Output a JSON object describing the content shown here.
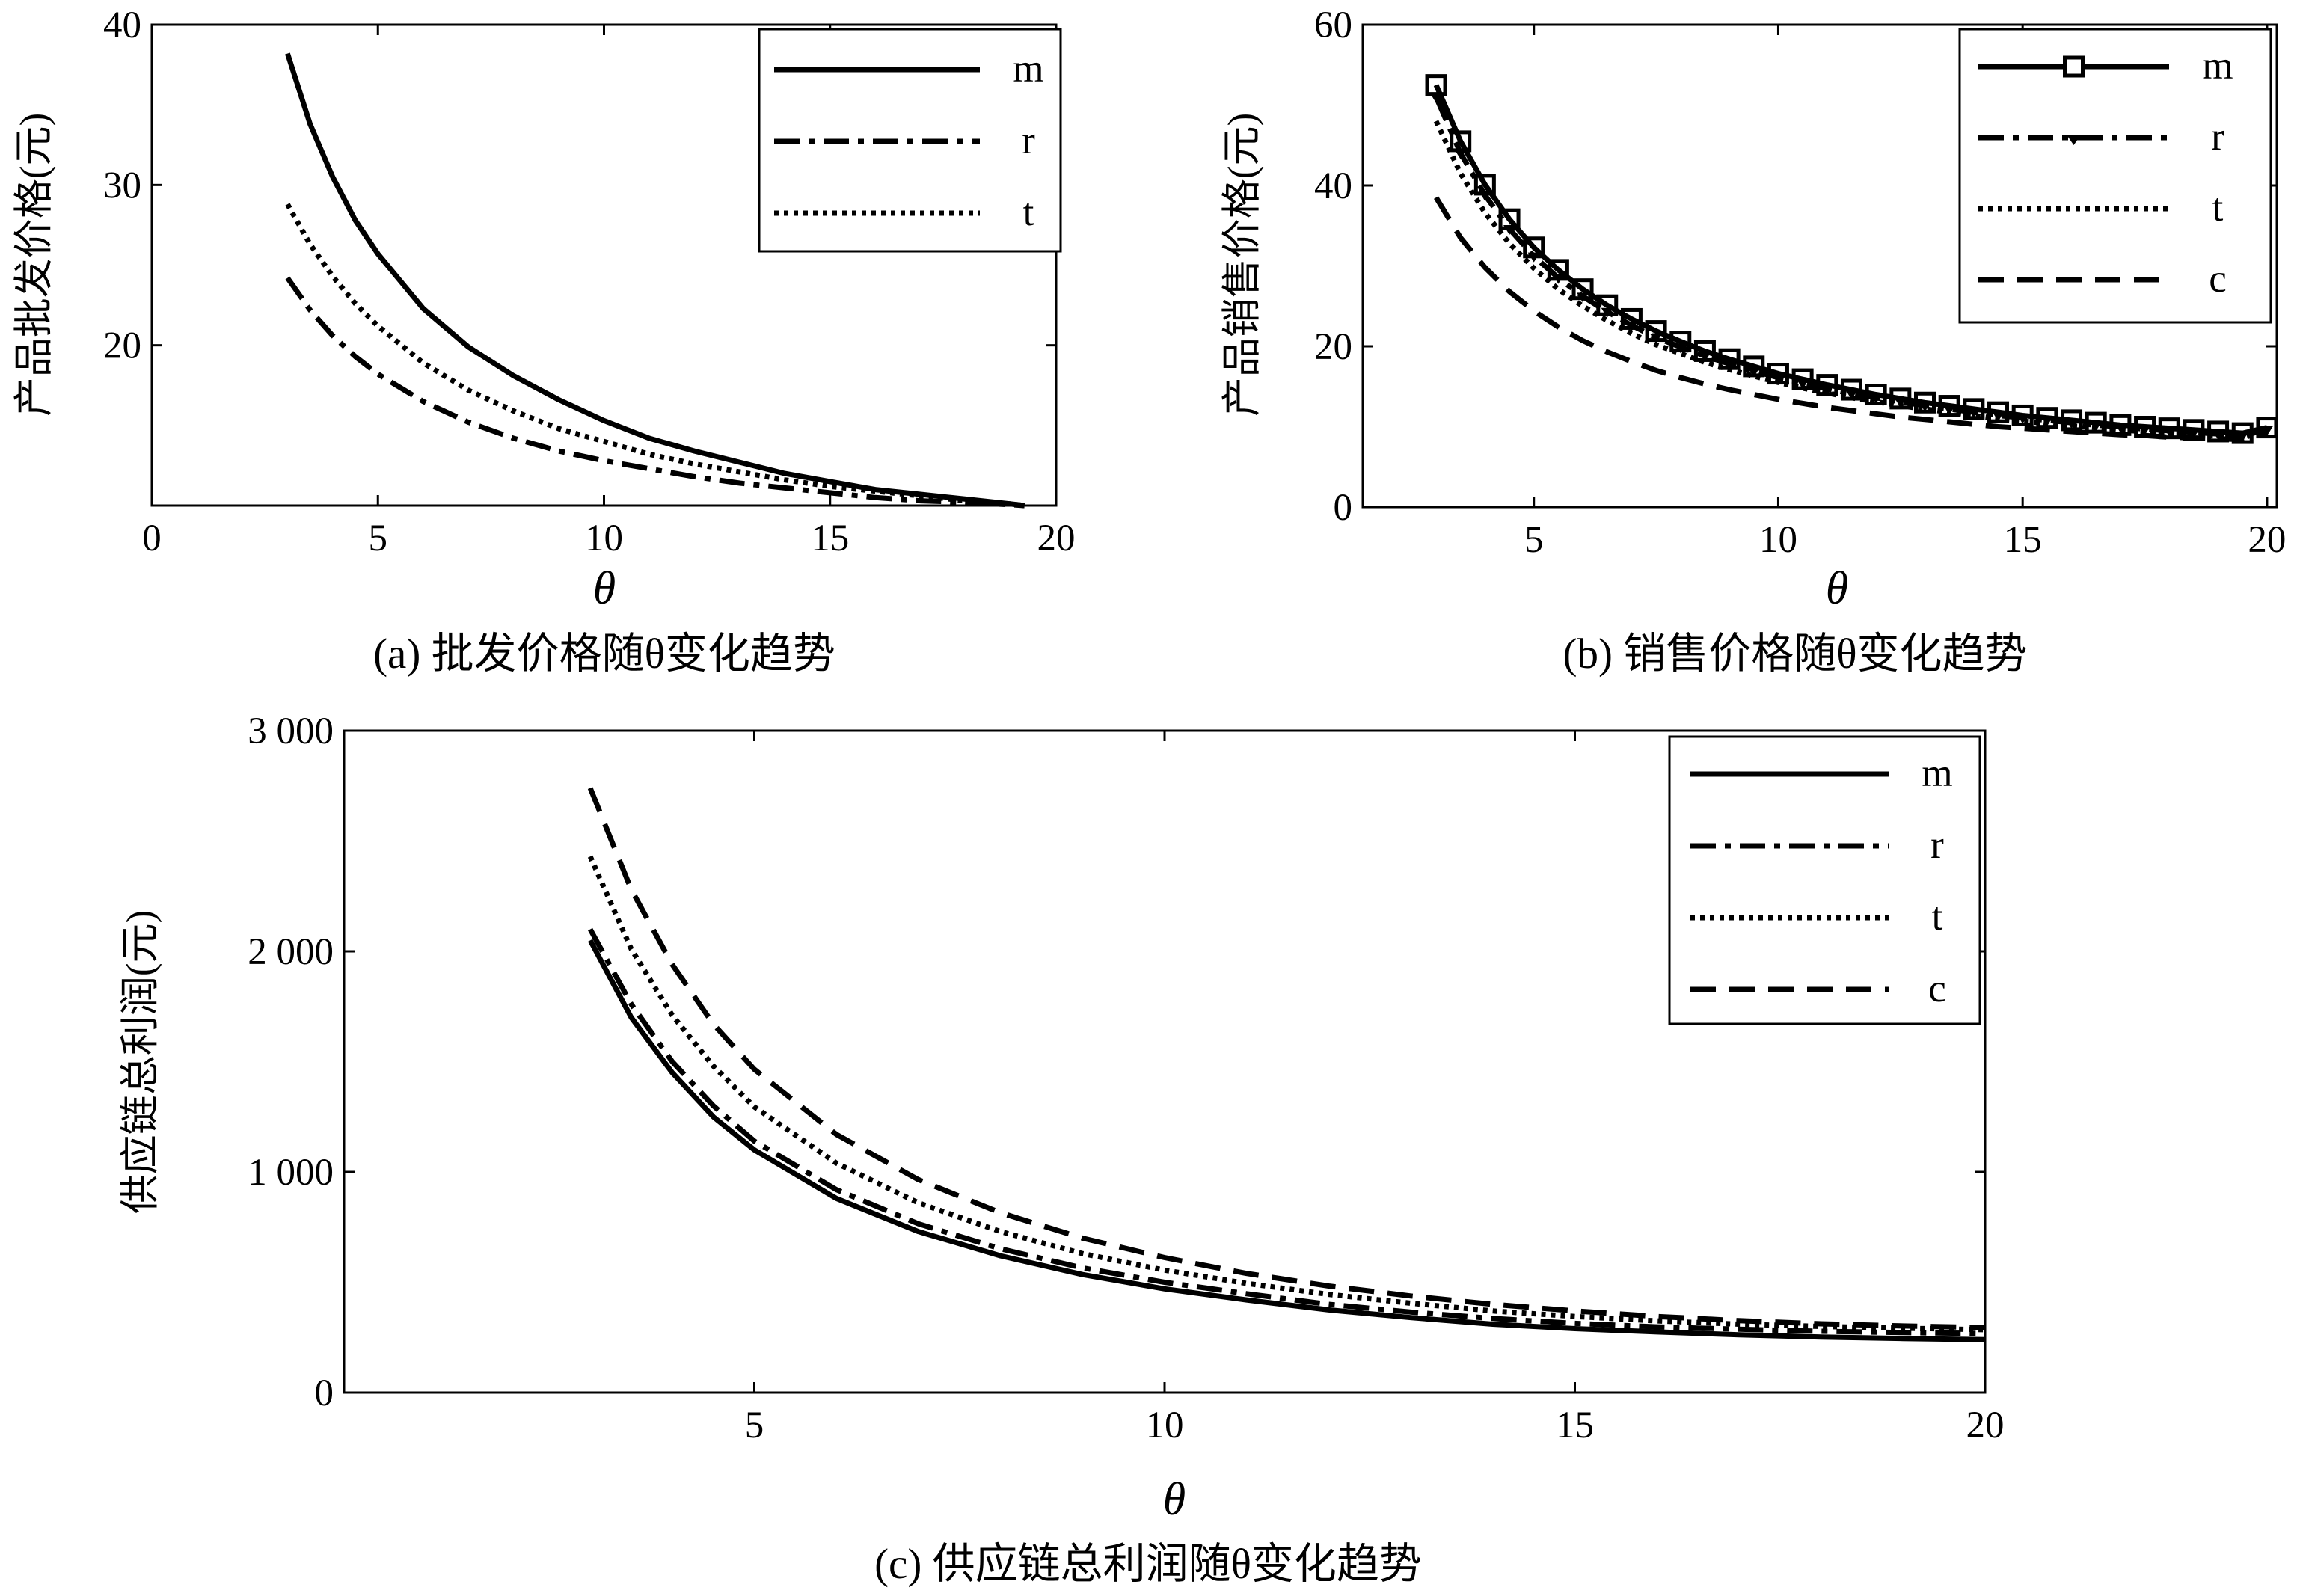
{
  "line_color": "#000000",
  "chart_data": [
    {
      "id": "a",
      "type": "line",
      "ylabel": "产品批发价格(元)",
      "xlabel": "θ",
      "caption": "(a) 批发价格随θ变化趋势",
      "xlim": [
        0,
        20
      ],
      "ylim": [
        10,
        40
      ],
      "xticks": [
        "0",
        "5",
        "10",
        "15",
        "20"
      ],
      "yticks": [
        "20",
        "30",
        "40"
      ],
      "legend_position": "top-right",
      "x": [
        3,
        3.5,
        4,
        4.5,
        5,
        6,
        7,
        8,
        9,
        10,
        11,
        12,
        13,
        14,
        15,
        16,
        17,
        18,
        19,
        19.3
      ],
      "series": [
        {
          "name": "m",
          "style": "solid",
          "values": [
            38.2,
            33.8,
            30.5,
            27.8,
            25.7,
            22.3,
            19.9,
            18.1,
            16.6,
            15.3,
            14.2,
            13.4,
            12.7,
            12.0,
            11.5,
            11.0,
            10.7,
            10.4,
            10.1,
            10.0
          ]
        },
        {
          "name": "r",
          "style": "dashdot",
          "values": [
            24.2,
            22.2,
            20.6,
            19.3,
            18.2,
            16.5,
            15.2,
            14.2,
            13.4,
            12.8,
            12.3,
            11.8,
            11.4,
            11.1,
            10.8,
            10.5,
            10.3,
            10.2,
            10.05,
            10.0
          ]
        },
        {
          "name": "t",
          "style": "dotted",
          "values": [
            28.8,
            26.3,
            24.3,
            22.6,
            21.2,
            18.9,
            17.2,
            15.9,
            14.8,
            14.0,
            13.2,
            12.6,
            12.1,
            11.6,
            11.2,
            10.9,
            10.6,
            10.3,
            10.1,
            10.0
          ]
        }
      ]
    },
    {
      "id": "b",
      "type": "line",
      "ylabel": "产品销售价格(元)",
      "xlabel": "θ",
      "caption": "(b) 销售价格随θ变化趋势",
      "xlim": [
        1.5,
        20.2
      ],
      "ylim": [
        0,
        60
      ],
      "xticks": [
        "5",
        "10",
        "15",
        "20"
      ],
      "yticks": [
        "0",
        "20",
        "40",
        "60"
      ],
      "legend_position": "top-right",
      "x": [
        3,
        3.5,
        4,
        4.5,
        5,
        5.5,
        6,
        6.5,
        7,
        7.5,
        8,
        8.5,
        9,
        9.5,
        10,
        10.5,
        11,
        11.5,
        12,
        12.5,
        13,
        13.5,
        14,
        14.5,
        15,
        15.5,
        16,
        16.5,
        17,
        17.5,
        18,
        18.5,
        19,
        19.5,
        20
      ],
      "series": [
        {
          "name": "m",
          "style": "solid-square",
          "values": [
            52.5,
            45.5,
            40.1,
            35.8,
            32.3,
            29.5,
            27.1,
            25.1,
            23.4,
            21.9,
            20.6,
            19.4,
            18.4,
            17.5,
            16.6,
            15.9,
            15.2,
            14.6,
            14.0,
            13.5,
            13.0,
            12.6,
            12.2,
            11.8,
            11.4,
            11.1,
            10.8,
            10.5,
            10.2,
            10.0,
            9.8,
            9.6,
            9.4,
            9.2,
            9.9
          ]
        },
        {
          "name": "r",
          "style": "dashdot-triangle",
          "values": [
            51.0,
            44.0,
            38.8,
            34.6,
            31.2,
            28.5,
            26.2,
            24.3,
            22.6,
            21.1,
            19.9,
            18.8,
            17.8,
            16.9,
            16.1,
            15.4,
            14.7,
            14.1,
            13.6,
            13.1,
            12.6,
            12.2,
            11.8,
            11.4,
            11.1,
            10.8,
            10.5,
            10.2,
            10.0,
            9.7,
            9.5,
            9.3,
            9.1,
            8.9,
            9.6
          ]
        },
        {
          "name": "t",
          "style": "dotted",
          "values": [
            48.0,
            41.5,
            36.6,
            32.8,
            29.7,
            27.1,
            25.0,
            23.2,
            21.6,
            20.2,
            19.1,
            18.0,
            17.1,
            16.3,
            15.5,
            14.8,
            14.2,
            13.6,
            13.1,
            12.6,
            12.2,
            11.8,
            11.4,
            11.0,
            10.7,
            10.4,
            10.1,
            9.9,
            9.6,
            9.4,
            9.2,
            9.0,
            8.8,
            8.6,
            9.5
          ]
        },
        {
          "name": "c",
          "style": "dashed",
          "values": [
            38.5,
            33.5,
            29.8,
            26.8,
            24.4,
            22.4,
            20.7,
            19.3,
            18.1,
            17.0,
            16.1,
            15.3,
            14.6,
            14.0,
            13.4,
            12.9,
            12.4,
            12.0,
            11.6,
            11.2,
            10.9,
            10.6,
            10.3,
            10.0,
            9.8,
            9.6,
            9.4,
            9.2,
            9.0,
            8.9,
            8.7,
            8.6,
            8.5,
            8.4,
            9.2
          ]
        }
      ]
    },
    {
      "id": "c",
      "type": "line",
      "ylabel": "供应链总利润(元)",
      "xlabel": "θ",
      "caption": "(c) 供应链总利润随θ变化趋势",
      "xlim": [
        0,
        20
      ],
      "ylim": [
        0,
        3000
      ],
      "xticks": [
        "5",
        "10",
        "15",
        "20"
      ],
      "yticks": [
        "0",
        "1 000",
        "2 000",
        "3 000"
      ],
      "legend_position": "top-right",
      "x": [
        3,
        3.5,
        4,
        4.5,
        5,
        6,
        7,
        8,
        9,
        10,
        11,
        12,
        13,
        14,
        15,
        16,
        17,
        18,
        19,
        20
      ],
      "series": [
        {
          "name": "m",
          "style": "solid",
          "values": [
            2050,
            1700,
            1450,
            1250,
            1100,
            880,
            730,
            620,
            535,
            470,
            420,
            375,
            340,
            310,
            290,
            275,
            262,
            252,
            245,
            240
          ]
        },
        {
          "name": "r",
          "style": "dashdot",
          "values": [
            2100,
            1760,
            1500,
            1300,
            1140,
            920,
            765,
            652,
            565,
            500,
            448,
            400,
            365,
            336,
            314,
            298,
            287,
            278,
            272,
            268
          ]
        },
        {
          "name": "t",
          "style": "dotted",
          "values": [
            2430,
            2010,
            1710,
            1480,
            1295,
            1040,
            860,
            730,
            630,
            555,
            495,
            445,
            405,
            370,
            345,
            325,
            310,
            300,
            292,
            285
          ]
        },
        {
          "name": "c",
          "style": "dashed",
          "values": [
            2740,
            2280,
            1940,
            1670,
            1465,
            1170,
            965,
            815,
            700,
            612,
            540,
            483,
            438,
            400,
            370,
            345,
            326,
            312,
            302,
            295
          ]
        }
      ]
    }
  ]
}
